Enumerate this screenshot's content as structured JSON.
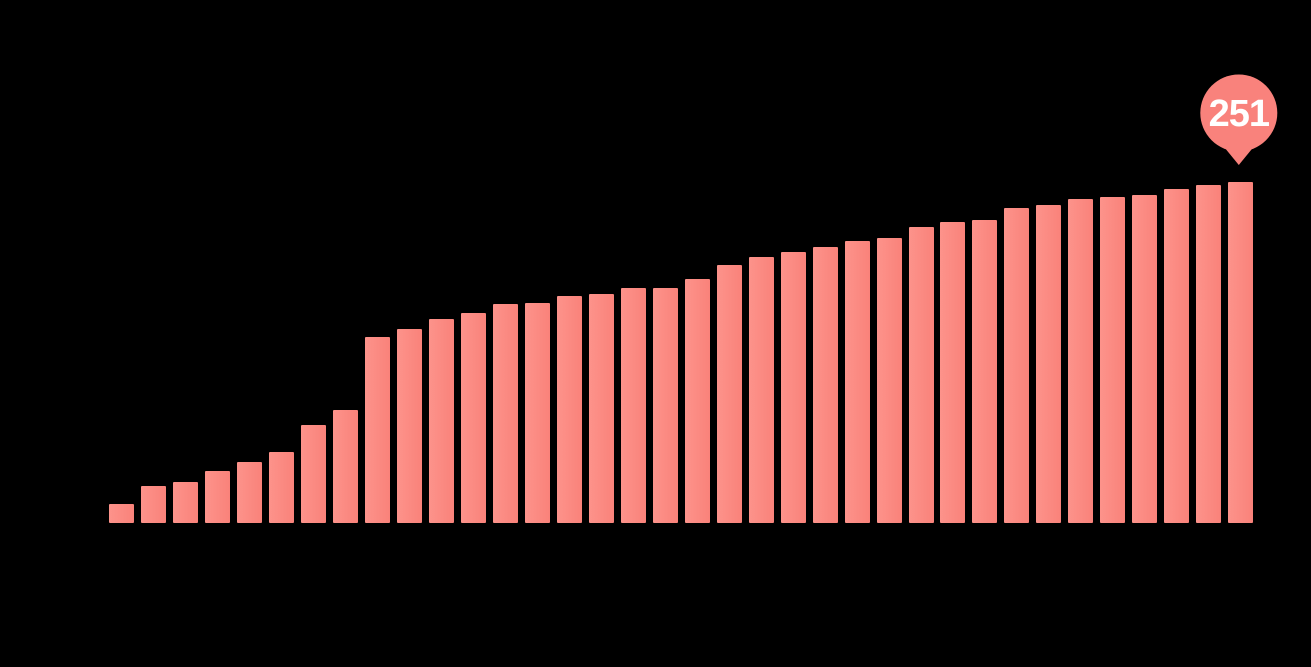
{
  "page": {
    "background_color": "#000000"
  },
  "chart_data": {
    "type": "bar",
    "title": "",
    "xlabel": "",
    "ylabel": "",
    "categories": [],
    "values": [
      14,
      27,
      30,
      38,
      45,
      52,
      72,
      83,
      137,
      143,
      150,
      155,
      161,
      162,
      167,
      169,
      173,
      173,
      180,
      190,
      196,
      200,
      203,
      208,
      210,
      218,
      222,
      223,
      232,
      234,
      239,
      240,
      242,
      246,
      249,
      251
    ],
    "ylim": [
      0,
      385
    ],
    "gridlines_visible": false,
    "legend_visible": false,
    "axis_labels_visible": false,
    "colors": {
      "background": "#000000",
      "bar": "#FB8B83",
      "bar_gradient_left": "#FD938B",
      "bar_gradient_right": "#F9827A"
    },
    "callout": {
      "value": "251",
      "shape": "map-pin",
      "position": "above-last-bar",
      "fill": "#F9827C",
      "text_color": "#FFFFFF"
    }
  }
}
